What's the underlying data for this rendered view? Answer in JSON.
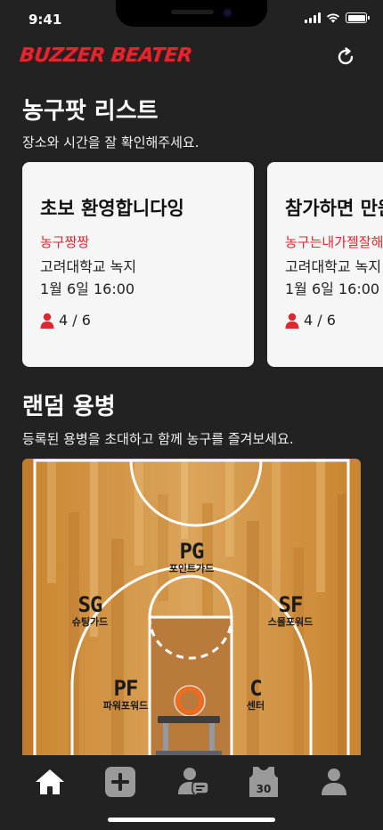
{
  "status_bar": {
    "time": "9:41"
  },
  "header": {
    "logo_text": "BUZZER BEATER"
  },
  "list_section": {
    "title": "농구팟 리스트",
    "subtitle": "장소와 시간을 잘 확인해주세요."
  },
  "cards": [
    {
      "title": "초보 환영합니다잉",
      "host": "농구짱짱",
      "place": "고려대학교 녹지",
      "time": "1월 6일 16:00",
      "count": "4 / 6"
    },
    {
      "title": "참가하면 만원",
      "host": "농구는내가젤잘해",
      "place": "고려대학교 녹지",
      "time": "1월 6일 16:00",
      "count": "4 / 6"
    }
  ],
  "mercenary_section": {
    "title": "랜덤 용병",
    "subtitle": "등록된 용병을 초대하고 함께 농구를 즐겨보세요."
  },
  "positions": [
    {
      "code": "PG",
      "name": "포인트가드"
    },
    {
      "code": "SG",
      "name": "슈팅가드"
    },
    {
      "code": "SF",
      "name": "스몰포워드"
    },
    {
      "code": "PF",
      "name": "파워포워드"
    },
    {
      "code": "C",
      "name": "센터"
    }
  ],
  "tabbar": {
    "items": [
      {
        "name": "home",
        "icon": "home-icon",
        "active": true
      },
      {
        "name": "create",
        "icon": "plus-square-icon",
        "active": false
      },
      {
        "name": "mercenary",
        "icon": "user-chat-icon",
        "active": false
      },
      {
        "name": "jersey",
        "icon": "jersey-icon",
        "active": false,
        "number": "30"
      },
      {
        "name": "profile",
        "icon": "user-icon",
        "active": false
      }
    ]
  },
  "colors": {
    "background": "#222222",
    "accent_red": "#e0262e",
    "card_bg": "#f7f6f7",
    "tab_inactive": "#9a9a9a",
    "tab_active": "#ffffff"
  }
}
